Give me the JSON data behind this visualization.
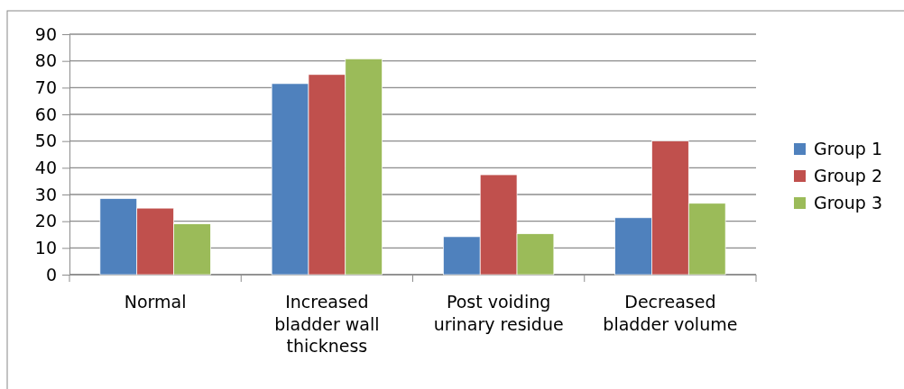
{
  "chart_data": {
    "type": "bar",
    "categories": [
      "Normal",
      "Increased bladder wall thickness",
      "Post voiding urinary residue",
      "Decreased bladder volume"
    ],
    "series": [
      {
        "name": "Group 1",
        "color": "#4f81bd",
        "values": [
          28.5,
          71.5,
          14.2,
          21.3
        ]
      },
      {
        "name": "Group 2",
        "color": "#c0504d",
        "values": [
          24.9,
          74.9,
          37.4,
          50
        ]
      },
      {
        "name": "Group 3",
        "color": "#9bbb59",
        "values": [
          19,
          80.8,
          15.3,
          26.7
        ]
      }
    ],
    "ylim": [
      0,
      90
    ],
    "yticks": [
      0,
      10,
      20,
      30,
      40,
      50,
      60,
      70,
      80,
      90
    ],
    "grid": "y",
    "legend": "right"
  }
}
